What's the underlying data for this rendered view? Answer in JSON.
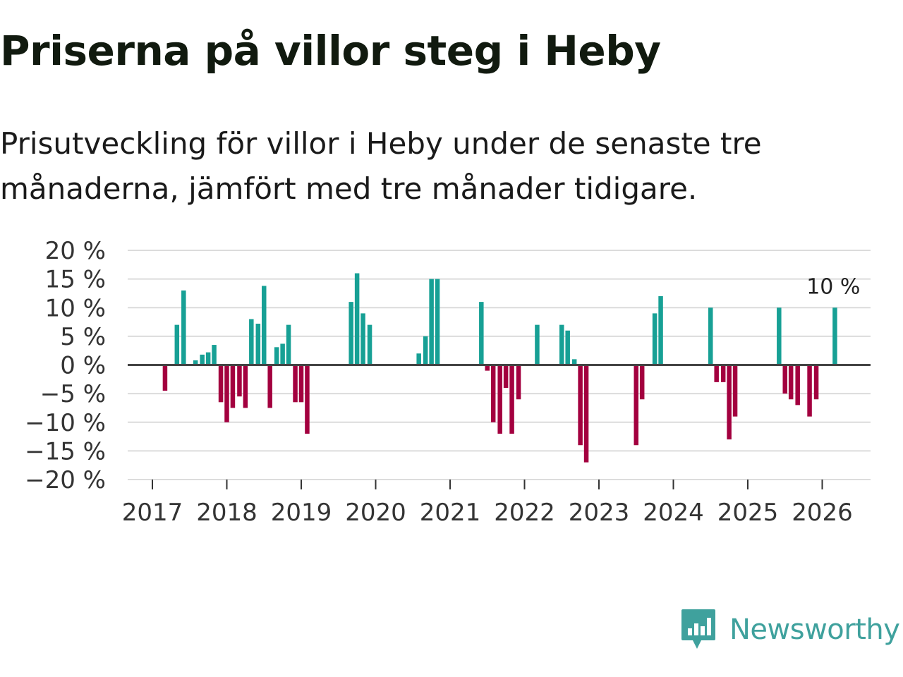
{
  "title": "Priserna på villor steg i Heby",
  "subtitle": "Prisutveckling för villor i Heby under de senaste tre månaderna, jämfört med tre månader tidigare.",
  "brand": {
    "name": "Newsworthy",
    "icon": "newsworthy-logo-icon",
    "color": "#3fa19d"
  },
  "colors": {
    "positive": "#17a095",
    "negative": "#a3003f",
    "grid": "#dcdcdc",
    "zero": "#444444"
  },
  "chart_data": {
    "type": "bar",
    "title": "Priserna på villor steg i Heby",
    "xlabel": "",
    "ylabel": "",
    "ylim": [
      -20,
      20
    ],
    "y_ticks": [
      20,
      15,
      10,
      5,
      0,
      -5,
      -10,
      -15,
      -20
    ],
    "y_tick_labels": [
      "20 %",
      "15 %",
      "10 %",
      "5 %",
      "0 %",
      "−5 %",
      "−10 %",
      "−15 %",
      "−20 %"
    ],
    "x_tick_labels": [
      "2017",
      "2018",
      "2019",
      "2020",
      "2021",
      "2022",
      "2023",
      "2024",
      "2025",
      "2026"
    ],
    "start_year": 2017,
    "x_end": 2026.67,
    "grid": true,
    "last_value_label": "10 %",
    "series": [
      {
        "name": "Prisutveckling",
        "points": [
          {
            "x": 2017.17,
            "v": -4.5
          },
          {
            "x": 2017.33,
            "v": 7
          },
          {
            "x": 2017.42,
            "v": 13
          },
          {
            "x": 2017.58,
            "v": 0.8
          },
          {
            "x": 2017.67,
            "v": 1.8
          },
          {
            "x": 2017.75,
            "v": 2.2
          },
          {
            "x": 2017.83,
            "v": 3.5
          },
          {
            "x": 2017.92,
            "v": -6.5
          },
          {
            "x": 2018.0,
            "v": -10
          },
          {
            "x": 2018.08,
            "v": -7.5
          },
          {
            "x": 2018.17,
            "v": -5.5
          },
          {
            "x": 2018.25,
            "v": -7.5
          },
          {
            "x": 2018.33,
            "v": 8
          },
          {
            "x": 2018.42,
            "v": 7.2
          },
          {
            "x": 2018.5,
            "v": 13.8
          },
          {
            "x": 2018.58,
            "v": -7.5
          },
          {
            "x": 2018.67,
            "v": 3.1
          },
          {
            "x": 2018.75,
            "v": 3.7
          },
          {
            "x": 2018.83,
            "v": 7
          },
          {
            "x": 2018.92,
            "v": -6.5
          },
          {
            "x": 2019.0,
            "v": -6.5
          },
          {
            "x": 2019.08,
            "v": -12
          },
          {
            "x": 2019.67,
            "v": 11
          },
          {
            "x": 2019.75,
            "v": 16
          },
          {
            "x": 2019.83,
            "v": 9
          },
          {
            "x": 2019.92,
            "v": 7
          },
          {
            "x": 2020.58,
            "v": 2
          },
          {
            "x": 2020.67,
            "v": 5
          },
          {
            "x": 2020.75,
            "v": 15
          },
          {
            "x": 2020.83,
            "v": 15
          },
          {
            "x": 2021.42,
            "v": 11
          },
          {
            "x": 2021.5,
            "v": -1
          },
          {
            "x": 2021.58,
            "v": -10
          },
          {
            "x": 2021.67,
            "v": -12
          },
          {
            "x": 2021.75,
            "v": -4
          },
          {
            "x": 2021.83,
            "v": -12
          },
          {
            "x": 2021.92,
            "v": -6
          },
          {
            "x": 2022.17,
            "v": 7
          },
          {
            "x": 2022.5,
            "v": 7
          },
          {
            "x": 2022.58,
            "v": 6
          },
          {
            "x": 2022.67,
            "v": 1
          },
          {
            "x": 2022.75,
            "v": -14
          },
          {
            "x": 2022.83,
            "v": -17
          },
          {
            "x": 2023.5,
            "v": -14
          },
          {
            "x": 2023.58,
            "v": -6
          },
          {
            "x": 2023.75,
            "v": 9
          },
          {
            "x": 2023.83,
            "v": 12
          },
          {
            "x": 2024.5,
            "v": 10
          },
          {
            "x": 2024.58,
            "v": -3
          },
          {
            "x": 2024.67,
            "v": -3
          },
          {
            "x": 2024.75,
            "v": -13
          },
          {
            "x": 2024.83,
            "v": -9
          },
          {
            "x": 2025.42,
            "v": 10
          },
          {
            "x": 2025.5,
            "v": -5
          },
          {
            "x": 2025.58,
            "v": -6
          },
          {
            "x": 2025.67,
            "v": -7
          },
          {
            "x": 2025.83,
            "v": -9
          },
          {
            "x": 2025.92,
            "v": -6
          },
          {
            "x": 2026.17,
            "v": 10
          }
        ]
      }
    ]
  }
}
